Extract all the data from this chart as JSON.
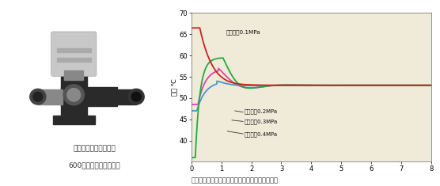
{
  "bg_color": "#f0ead8",
  "fig_bg_color": "#ffffff",
  "ylim": [
    35,
    70
  ],
  "xlim": [
    0,
    8
  ],
  "yticks": [
    40,
    45,
    50,
    55,
    60,
    65,
    70
  ],
  "xticks": [
    0,
    1,
    2,
    3,
    4,
    5,
    6,
    7,
    8
  ],
  "ylabel": "温度 ℃",
  "bottom_text": "柔性应对水压变化，水温始终稳定在设定出水温度",
  "left_title1": "日本进口电子膨胀水阀",
  "left_title2": "600级精确调节出水温度",
  "settle_temp": 53.0,
  "color_01": "#cc2222",
  "color_02": "#dd44aa",
  "color_03": "#4499cc",
  "color_04": "#22aa44",
  "label_01": "进水压力0.1MPa",
  "label_02": "进水压力0.2MPa",
  "label_03": "进水压力0.3MPa",
  "label_04": "进水压力0.4MPa"
}
